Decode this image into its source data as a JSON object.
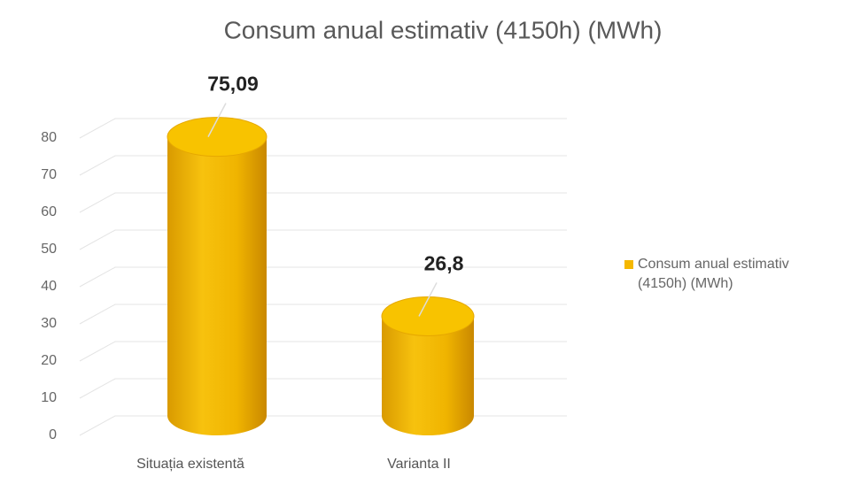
{
  "chart_data": {
    "type": "bar",
    "title": "Consum anual estimativ (4150h) (MWh)",
    "categories": [
      "Situația existentă",
      "Varianta II"
    ],
    "series": [
      {
        "name": "Consum anual estimativ (4150h) (MWh)",
        "color": "#f5b800",
        "values": [
          75.09,
          26.8
        ],
        "value_labels": [
          "75,09",
          "26,8"
        ]
      }
    ],
    "ylim": [
      0,
      80
    ],
    "yticks": [
      0,
      10,
      20,
      30,
      40,
      50,
      60,
      70,
      80
    ],
    "grid": true,
    "legend": "right"
  }
}
